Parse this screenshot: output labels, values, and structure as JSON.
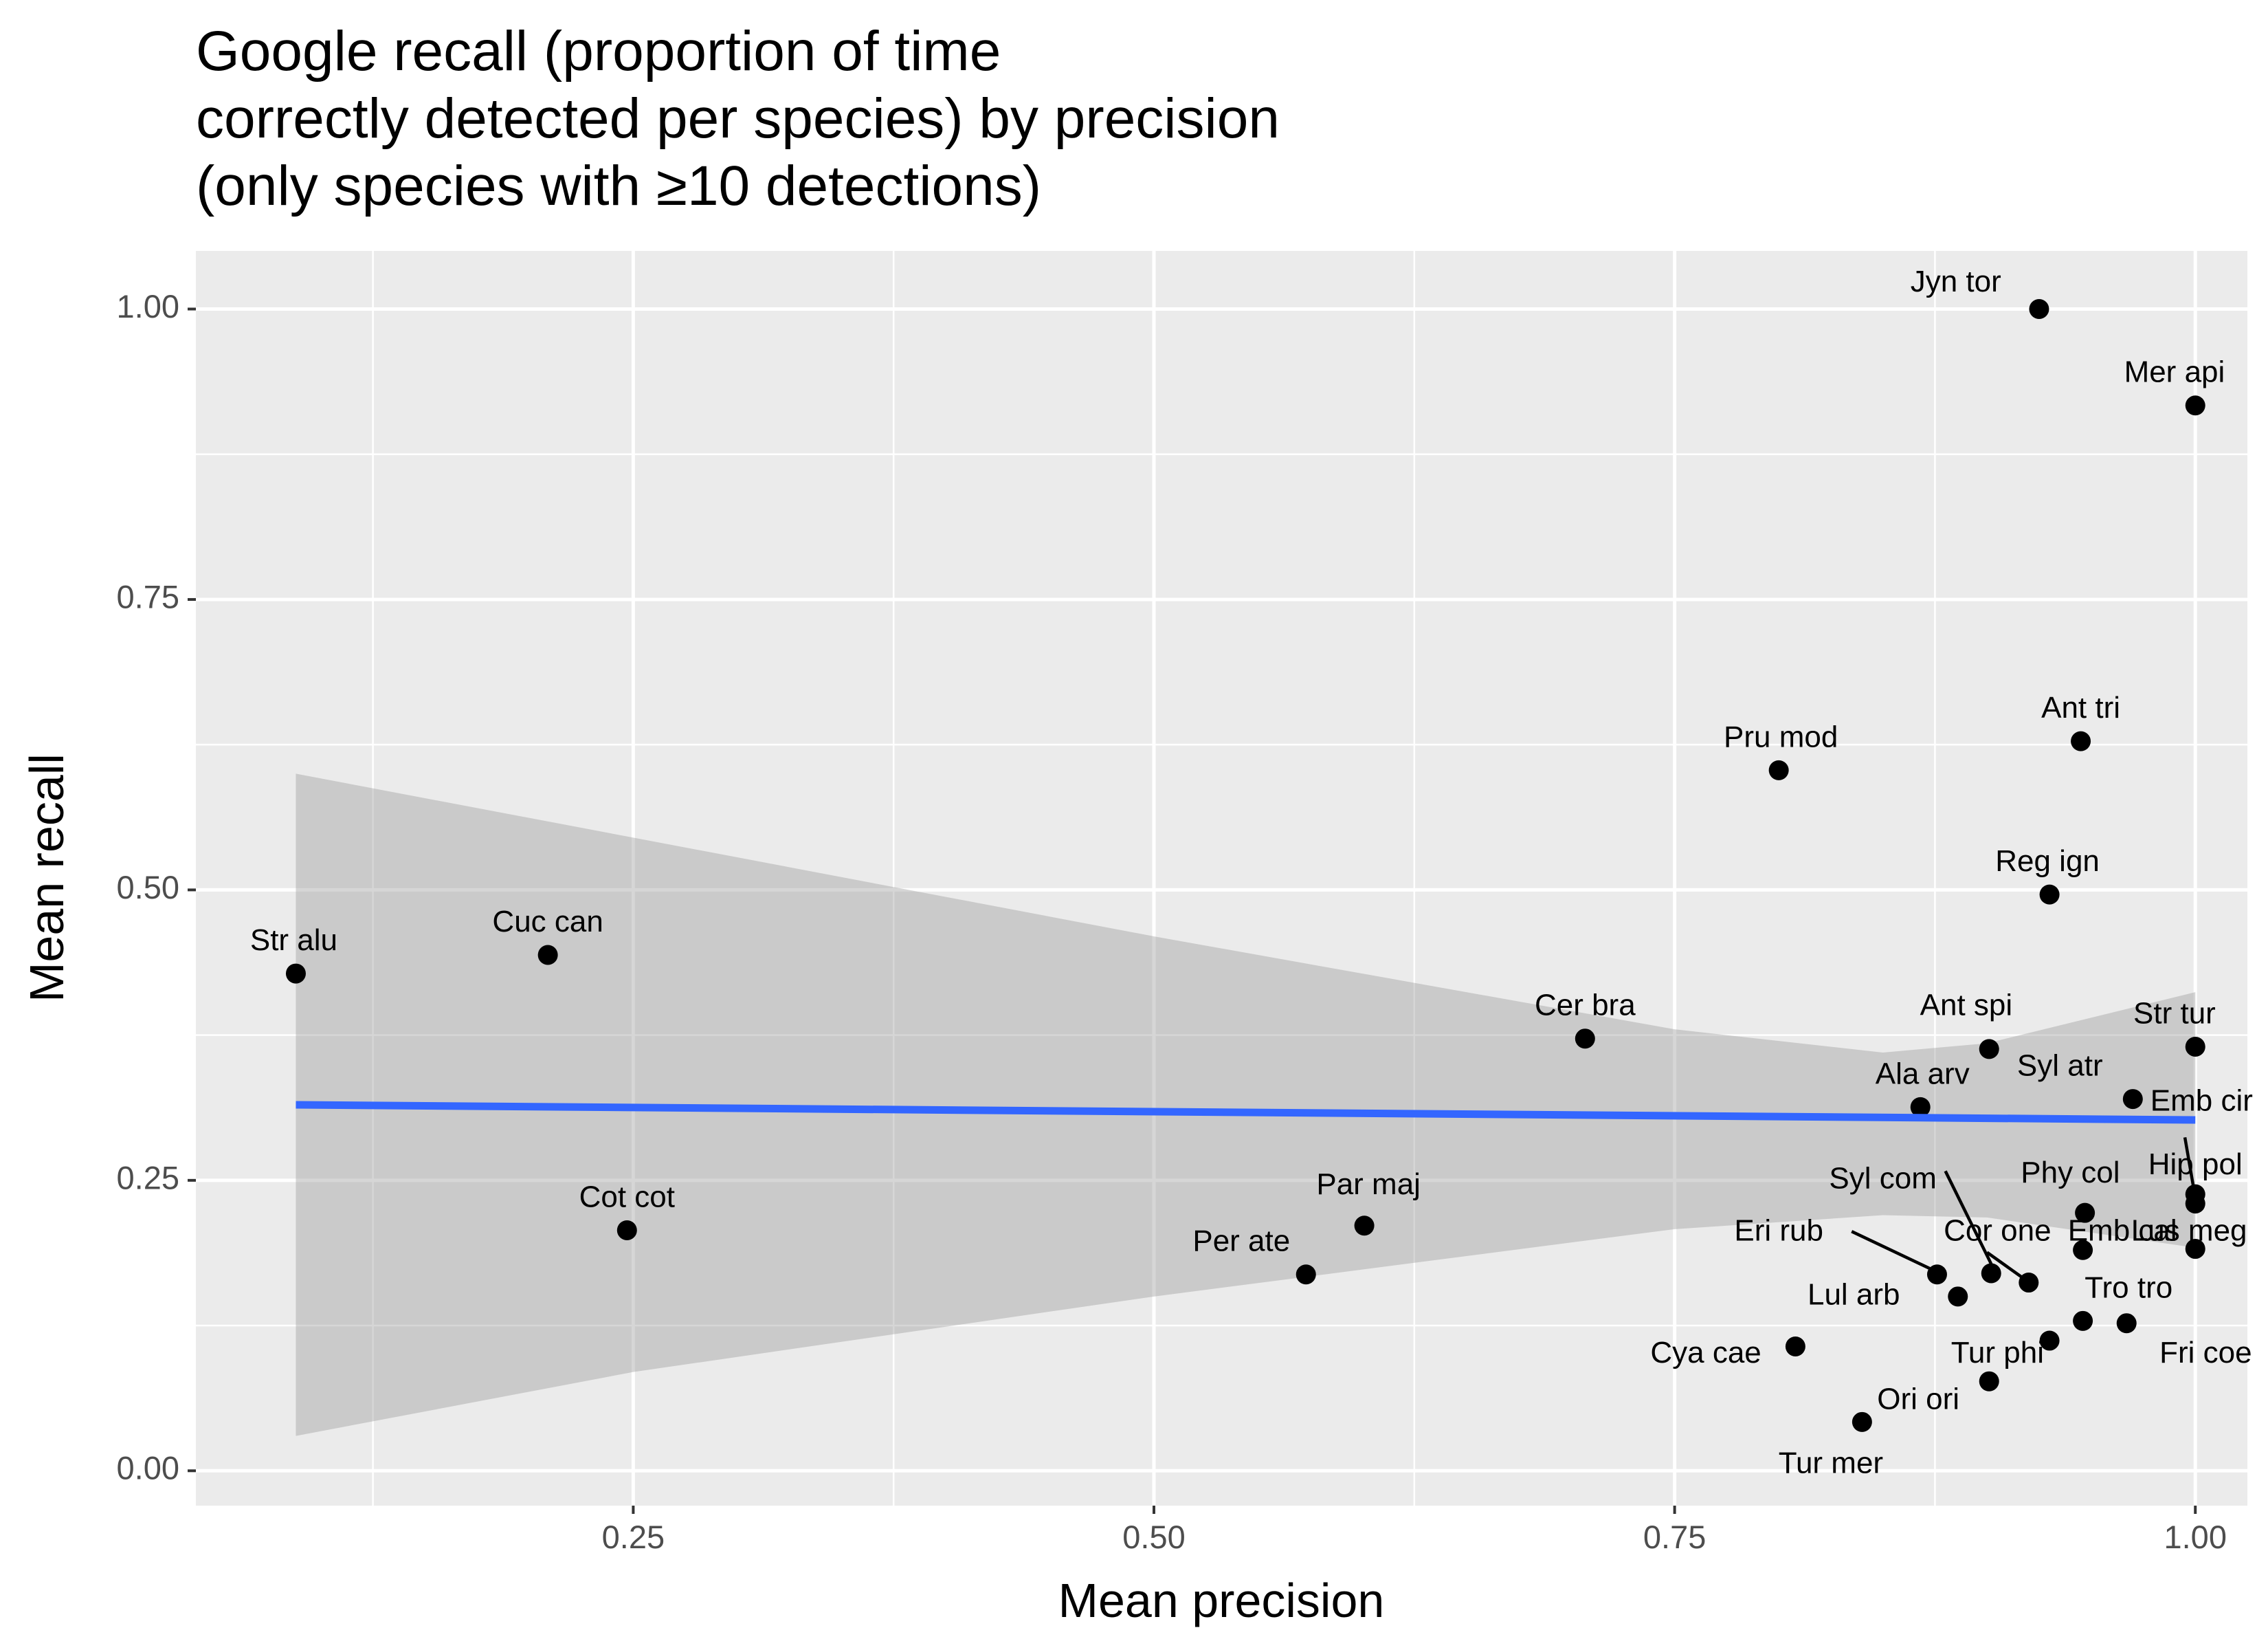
{
  "chart_data": {
    "type": "scatter",
    "title_lines": [
      "Google recall (proportion of time",
      "correctly detected per species) by precision",
      "(only species with ≥10 detections)"
    ],
    "xlabel": "Mean precision",
    "ylabel": "Mean recall",
    "xlim": [
      0.04,
      1.025
    ],
    "ylim": [
      -0.03,
      1.05
    ],
    "x_ticks": [
      0.25,
      0.5,
      0.75,
      1.0
    ],
    "x_tick_labels": [
      "0.25",
      "0.50",
      "0.75",
      "1.00"
    ],
    "y_ticks": [
      0.0,
      0.25,
      0.5,
      0.75,
      1.0
    ],
    "y_tick_labels": [
      "0.00",
      "0.25",
      "0.50",
      "0.75",
      "1.00"
    ],
    "grid": true,
    "colors": {
      "panel": "#ebebeb",
      "grid": "#ffffff",
      "point": "#000000",
      "trend": "#3366ff",
      "ribbon": "#bebebe"
    },
    "points": [
      {
        "label": "Jyn tor",
        "x": 0.925,
        "y": 1.0,
        "lx": 0.885,
        "ly": 1.022
      },
      {
        "label": "Mer api",
        "x": 1.0,
        "y": 0.917,
        "lx": 0.99,
        "ly": 0.944
      },
      {
        "label": "Ant tri",
        "x": 0.945,
        "y": 0.628,
        "lx": 0.945,
        "ly": 0.655
      },
      {
        "label": "Pru mod",
        "x": 0.8,
        "y": 0.603,
        "lx": 0.801,
        "ly": 0.63
      },
      {
        "label": "Reg ign",
        "x": 0.93,
        "y": 0.496,
        "lx": 0.929,
        "ly": 0.523
      },
      {
        "label": "Str alu",
        "x": 0.088,
        "y": 0.428,
        "lx": 0.087,
        "ly": 0.455
      },
      {
        "label": "Cuc can",
        "x": 0.209,
        "y": 0.444,
        "lx": 0.209,
        "ly": 0.471
      },
      {
        "label": "Cer bra",
        "x": 0.707,
        "y": 0.372,
        "lx": 0.707,
        "ly": 0.399
      },
      {
        "label": "Ant spi",
        "x": 0.901,
        "y": 0.363,
        "lx": 0.89,
        "ly": 0.399
      },
      {
        "label": "Str tur",
        "x": 1.0,
        "y": 0.365,
        "lx": 0.99,
        "ly": 0.392
      },
      {
        "label": "Syl atr",
        "x": 0.97,
        "y": 0.32,
        "lx": 0.935,
        "ly": 0.347
      },
      {
        "label": "Ala arv",
        "x": 0.868,
        "y": 0.313,
        "lx": 0.869,
        "ly": 0.34
      },
      {
        "label": "Emb cir",
        "x": 1.0,
        "y": 0.23,
        "lx": 1.003,
        "ly": 0.317
      },
      {
        "label": "Hip pol",
        "x": 1.0,
        "y": 0.238,
        "lx": 1.0,
        "ly": 0.262
      },
      {
        "label": "Phy col",
        "x": 0.947,
        "y": 0.222,
        "lx": 0.94,
        "ly": 0.255
      },
      {
        "label": "Cot cot",
        "x": 0.247,
        "y": 0.207,
        "lx": 0.247,
        "ly": 0.234
      },
      {
        "label": "Par maj",
        "x": 0.601,
        "y": 0.211,
        "lx": 0.603,
        "ly": 0.245
      },
      {
        "label": "Per ate",
        "x": 0.573,
        "y": 0.169,
        "lx": 0.542,
        "ly": 0.196
      },
      {
        "label": "Emb cal",
        "x": 0.946,
        "y": 0.19,
        "lx": 0.965,
        "ly": 0.205
      },
      {
        "label": "Lus meg",
        "x": 1.0,
        "y": 0.191,
        "lx": 0.997,
        "ly": 0.205
      },
      {
        "label": "Syl com",
        "x": 0.902,
        "y": 0.17,
        "lx": 0.85,
        "ly": 0.25
      },
      {
        "label": "Cor one",
        "x": 0.92,
        "y": 0.162,
        "lx": 0.905,
        "ly": 0.205
      },
      {
        "label": "Eri rub",
        "x": 0.876,
        "y": 0.169,
        "lx": 0.8,
        "ly": 0.205
      },
      {
        "label": "Lul arb",
        "x": 0.886,
        "y": 0.15,
        "lx": 0.836,
        "ly": 0.15
      },
      {
        "label": "Tro tro",
        "x": 0.946,
        "y": 0.129,
        "lx": 0.968,
        "ly": 0.156
      },
      {
        "label": "Fri coe",
        "x": 0.967,
        "y": 0.127,
        "lx": 1.005,
        "ly": 0.1
      },
      {
        "label": "Tur phi",
        "x": 0.93,
        "y": 0.112,
        "lx": 0.905,
        "ly": 0.1
      },
      {
        "label": "Cya cae",
        "x": 0.808,
        "y": 0.107,
        "lx": 0.765,
        "ly": 0.1
      },
      {
        "label": "Ori ori",
        "x": 0.901,
        "y": 0.077,
        "lx": 0.867,
        "ly": 0.06
      },
      {
        "label": "Tur mer",
        "x": 0.84,
        "y": 0.042,
        "lx": 0.825,
        "ly": 0.005
      }
    ],
    "leaders": [
      {
        "label": "Emb cir",
        "x1": 0.995,
        "y1": 0.287,
        "x2": 1.0,
        "y2": 0.235
      },
      {
        "label": "Syl com",
        "x1": 0.88,
        "y1": 0.258,
        "x2": 0.902,
        "y2": 0.178
      },
      {
        "label": "Eri rub",
        "x1": 0.835,
        "y1": 0.206,
        "x2": 0.875,
        "y2": 0.172
      },
      {
        "label": "Cor one",
        "x1": 0.9,
        "y1": 0.188,
        "x2": 0.918,
        "y2": 0.165
      }
    ],
    "trend": {
      "x": [
        0.088,
        1.0
      ],
      "y": [
        0.315,
        0.302
      ]
    },
    "ribbon": {
      "x": [
        0.088,
        0.25,
        0.5,
        0.75,
        0.85,
        0.9,
        1.0
      ],
      "upper": [
        0.6,
        0.545,
        0.46,
        0.38,
        0.36,
        0.368,
        0.412
      ],
      "lower": [
        0.03,
        0.085,
        0.15,
        0.208,
        0.22,
        0.218,
        0.192
      ]
    }
  }
}
